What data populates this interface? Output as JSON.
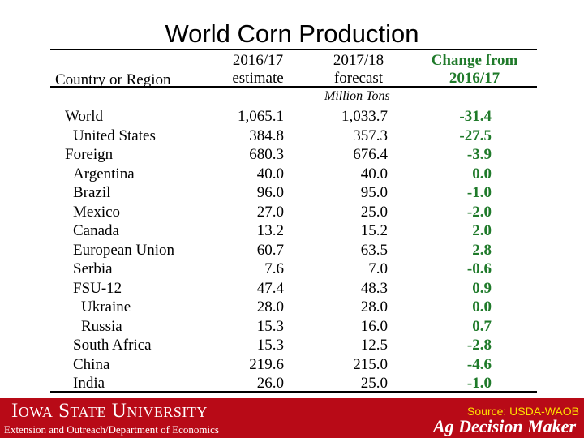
{
  "title": "World Corn Production",
  "table": {
    "headers": {
      "country": "Country or Region",
      "col1_line1": "2016/17",
      "col1_line2": "estimate",
      "col2_line1": "2017/18",
      "col2_line2": "forecast",
      "col3_line1": "Change from",
      "col3_line2": "2016/17"
    },
    "units": "Million Tons",
    "rows": [
      {
        "name": "World",
        "indent": 0,
        "v2016": "1,065.1",
        "v2017": "1,033.7",
        "change": "-31.4"
      },
      {
        "name": "United States",
        "indent": 1,
        "v2016": "384.8",
        "v2017": "357.3",
        "change": "-27.5"
      },
      {
        "name": "Foreign",
        "indent": 0,
        "v2016": "680.3",
        "v2017": "676.4",
        "change": "-3.9"
      },
      {
        "name": "Argentina",
        "indent": 1,
        "v2016": "40.0",
        "v2017": "40.0",
        "change": "0.0"
      },
      {
        "name": "Brazil",
        "indent": 1,
        "v2016": "96.0",
        "v2017": "95.0",
        "change": "-1.0"
      },
      {
        "name": "Mexico",
        "indent": 1,
        "v2016": "27.0",
        "v2017": "25.0",
        "change": "-2.0"
      },
      {
        "name": "Canada",
        "indent": 1,
        "v2016": "13.2",
        "v2017": "15.2",
        "change": "2.0"
      },
      {
        "name": "European Union",
        "indent": 1,
        "v2016": "60.7",
        "v2017": "63.5",
        "change": "2.8"
      },
      {
        "name": "Serbia",
        "indent": 1,
        "v2016": "7.6",
        "v2017": "7.0",
        "change": "-0.6"
      },
      {
        "name": "FSU-12",
        "indent": 1,
        "v2016": "47.4",
        "v2017": "48.3",
        "change": "0.9"
      },
      {
        "name": "Ukraine",
        "indent": 2,
        "v2016": "28.0",
        "v2017": "28.0",
        "change": "0.0"
      },
      {
        "name": "Russia",
        "indent": 2,
        "v2016": "15.3",
        "v2017": "16.0",
        "change": "0.7"
      },
      {
        "name": "South Africa",
        "indent": 1,
        "v2016": "15.3",
        "v2017": "12.5",
        "change": "-2.8"
      },
      {
        "name": "China",
        "indent": 1,
        "v2016": "219.6",
        "v2017": "215.0",
        "change": "-4.6"
      },
      {
        "name": "India",
        "indent": 1,
        "v2016": "26.0",
        "v2017": "25.0",
        "change": "-1.0"
      }
    ]
  },
  "footer": {
    "university": "Iowa State University",
    "department": "Extension and Outreach/Department of Economics",
    "source": "Source: USDA-WAOB",
    "program": "Ag Decision Maker"
  },
  "colors": {
    "change_text": "#1f7a2a",
    "footer_bg": "#b80a17",
    "source_text": "#ffe000"
  }
}
